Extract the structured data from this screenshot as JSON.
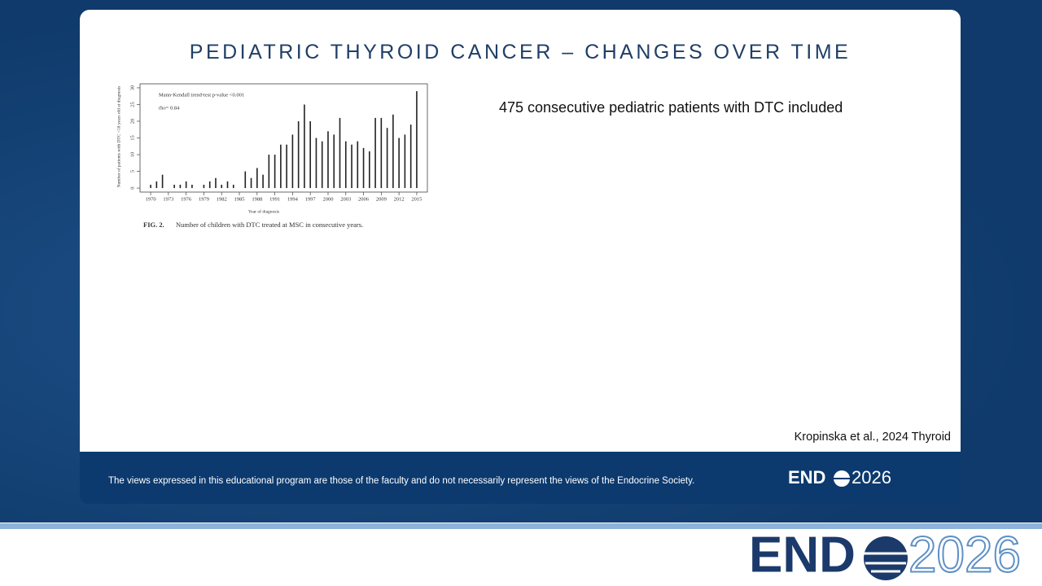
{
  "slide": {
    "title": "PEDIATRIC THYROID CANCER – CHANGES OVER TIME",
    "bullets": [
      "475 consecutive pediatric patients with DTC included"
    ],
    "citation": "Kropinska et al., 2024 Thyroid",
    "disclaimer": "The views expressed in this educational program are those of the faculty and do not necessarily represent the views of the Endocrine Society.",
    "logo": {
      "left": "END",
      "right": "2026"
    }
  },
  "chart_data": {
    "type": "bar",
    "annotations": [
      "Mann-Kendall trend-test p-value <0.001",
      "rho= 0.84"
    ],
    "x_label": "Year of diagnosis",
    "y_label": "Number of patients with DTC <18 years old at diagnosis",
    "caption": {
      "label": "FIG. 2.",
      "text": "Number of children with DTC treated at MSC in consecutive years."
    },
    "x": [
      1970,
      1971,
      1972,
      1973,
      1974,
      1975,
      1976,
      1977,
      1978,
      1979,
      1980,
      1981,
      1982,
      1983,
      1984,
      1985,
      1986,
      1987,
      1988,
      1989,
      1990,
      1991,
      1992,
      1993,
      1994,
      1995,
      1996,
      1997,
      1998,
      1999,
      2000,
      2001,
      2002,
      2003,
      2004,
      2005,
      2006,
      2007,
      2008,
      2009,
      2010,
      2011,
      2012,
      2013,
      2014,
      2015
    ],
    "values": [
      1,
      2,
      4,
      0,
      1,
      1,
      2,
      1,
      0,
      1,
      2,
      3,
      1,
      2,
      1,
      0,
      5,
      3,
      6,
      4,
      10,
      10,
      13,
      13,
      16,
      20,
      25,
      20,
      15,
      14,
      17,
      16,
      21,
      14,
      13,
      14,
      12,
      11,
      21,
      21,
      18,
      22,
      15,
      16,
      19,
      29
    ],
    "color": "#222222",
    "xlim": [
      1968.2,
      2016.8
    ],
    "xticks": [
      1970,
      1973,
      1976,
      1979,
      1982,
      1985,
      1988,
      1991,
      1994,
      1997,
      2000,
      2003,
      2006,
      2009,
      2012,
      2015
    ],
    "ylim": [
      -1.2,
      31.2
    ],
    "yticks": [
      0,
      5,
      10,
      15,
      20,
      25,
      30
    ]
  }
}
